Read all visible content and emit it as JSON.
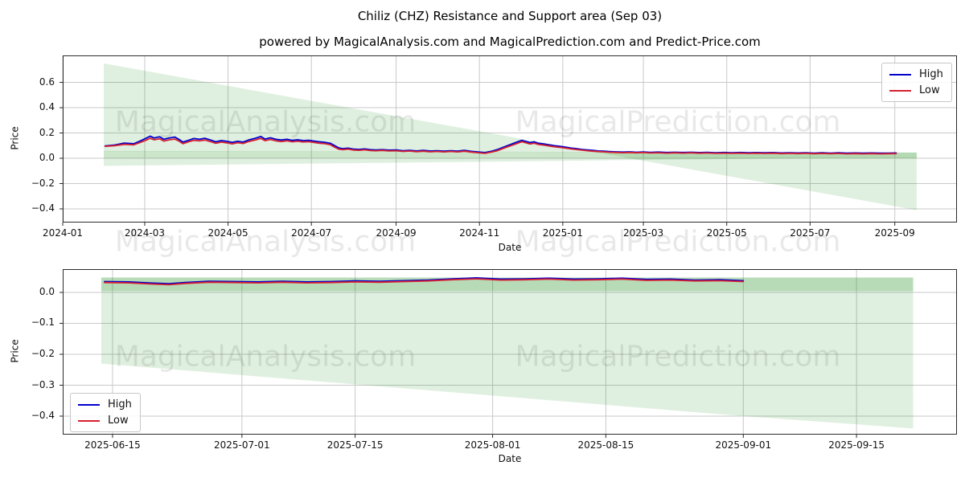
{
  "header": {
    "title": "Chiliz (CHZ) Resistance and Support area (Sep 03)",
    "subtitle": "powered by MagicalAnalysis.com and MagicalPrediction.com and Predict-Price.com"
  },
  "watermarks": {
    "left": "MagicalAnalysis.com",
    "right": "MagicalPrediction.com"
  },
  "legend": {
    "high_label": "High",
    "low_label": "Low"
  },
  "colors": {
    "high": "#0000cc",
    "low": "#d62030",
    "area": "#008000",
    "grid": "#c9c9c9",
    "spine": "#2b2b2b",
    "tick": "#111111"
  },
  "chart_data": [
    {
      "type": "line",
      "name": "full-history-with-projection",
      "xlabel": "Date",
      "ylabel": "Price",
      "x_origin_date": "2024-01-01",
      "xlim": [
        0,
        654.5
      ],
      "ylim": [
        -0.508,
        0.813
      ],
      "grid": true,
      "legend_position": "top-right",
      "xticks": {
        "positions": [
          0,
          60,
          121,
          182,
          244,
          305,
          366,
          425,
          486,
          547,
          609
        ],
        "labels": [
          "2024-01",
          "2024-03",
          "2024-05",
          "2024-07",
          "2024-09",
          "2024-11",
          "2025-01",
          "2025-03",
          "2025-05",
          "2025-07",
          "2025-09"
        ]
      },
      "yticks": {
        "values": [
          0.6,
          0.4,
          0.2,
          0.0,
          -0.2,
          -0.4
        ],
        "labels": [
          "0.6",
          "0.4",
          "0.2",
          "0.0",
          "−0.2",
          "−0.4"
        ]
      },
      "series": [
        {
          "name": "High",
          "color_key": "high",
          "x": [
            31,
            38,
            45,
            52,
            57,
            61,
            64,
            67,
            71,
            74,
            78,
            82,
            85,
            88,
            92,
            96,
            100,
            104,
            108,
            112,
            116,
            120,
            124,
            128,
            132,
            136,
            141,
            145,
            148,
            152,
            156,
            160,
            164,
            168,
            172,
            176,
            180,
            184,
            188,
            192,
            196,
            199,
            202,
            205,
            209,
            213,
            217,
            221,
            225,
            229,
            234,
            239,
            244,
            249,
            254,
            259,
            264,
            269,
            274,
            279,
            284,
            289,
            294,
            299,
            304,
            309,
            314,
            318,
            322,
            326,
            330,
            333,
            336,
            339,
            342,
            345,
            348,
            352,
            356,
            360,
            364,
            368,
            372,
            376,
            380,
            384,
            388,
            392,
            396,
            400,
            405,
            410,
            415,
            420,
            425,
            430,
            436,
            442,
            448,
            454,
            460,
            466,
            472,
            478,
            484,
            490,
            496,
            502,
            508,
            514,
            520,
            526,
            532,
            538,
            544,
            550,
            556,
            562,
            568,
            574,
            580,
            586,
            592,
            598,
            604,
            610
          ],
          "values": [
            0.098,
            0.105,
            0.12,
            0.115,
            0.138,
            0.158,
            0.175,
            0.16,
            0.17,
            0.15,
            0.16,
            0.168,
            0.15,
            0.128,
            0.142,
            0.156,
            0.15,
            0.158,
            0.145,
            0.13,
            0.14,
            0.134,
            0.126,
            0.134,
            0.128,
            0.144,
            0.158,
            0.172,
            0.152,
            0.162,
            0.15,
            0.144,
            0.15,
            0.142,
            0.146,
            0.14,
            0.142,
            0.136,
            0.13,
            0.126,
            0.118,
            0.1,
            0.082,
            0.076,
            0.08,
            0.072,
            0.07,
            0.074,
            0.068,
            0.066,
            0.068,
            0.064,
            0.066,
            0.06,
            0.063,
            0.058,
            0.062,
            0.057,
            0.06,
            0.056,
            0.06,
            0.056,
            0.062,
            0.055,
            0.05,
            0.045,
            0.056,
            0.068,
            0.085,
            0.102,
            0.118,
            0.13,
            0.142,
            0.133,
            0.124,
            0.13,
            0.119,
            0.113,
            0.106,
            0.099,
            0.094,
            0.088,
            0.081,
            0.076,
            0.07,
            0.066,
            0.062,
            0.058,
            0.056,
            0.053,
            0.051,
            0.049,
            0.051,
            0.048,
            0.05,
            0.047,
            0.049,
            0.046,
            0.048,
            0.046,
            0.048,
            0.045,
            0.047,
            0.044,
            0.046,
            0.044,
            0.046,
            0.043,
            0.045,
            0.043,
            0.045,
            0.042,
            0.044,
            0.042,
            0.044,
            0.041,
            0.043,
            0.041,
            0.043,
            0.04,
            0.042,
            0.04,
            0.042,
            0.04,
            0.041,
            0.042
          ]
        },
        {
          "name": "Low",
          "color_key": "low",
          "x": [
            31,
            38,
            45,
            52,
            57,
            61,
            64,
            67,
            71,
            74,
            78,
            82,
            85,
            88,
            92,
            96,
            100,
            104,
            108,
            112,
            116,
            120,
            124,
            128,
            132,
            136,
            141,
            145,
            148,
            152,
            156,
            160,
            164,
            168,
            172,
            176,
            180,
            184,
            188,
            192,
            196,
            199,
            202,
            205,
            209,
            213,
            217,
            221,
            225,
            229,
            234,
            239,
            244,
            249,
            254,
            259,
            264,
            269,
            274,
            279,
            284,
            289,
            294,
            299,
            304,
            309,
            314,
            318,
            322,
            326,
            330,
            333,
            336,
            339,
            342,
            345,
            348,
            352,
            356,
            360,
            364,
            368,
            372,
            376,
            380,
            384,
            388,
            392,
            396,
            400,
            405,
            410,
            415,
            420,
            425,
            430,
            436,
            442,
            448,
            454,
            460,
            466,
            472,
            478,
            484,
            490,
            496,
            502,
            508,
            514,
            520,
            526,
            532,
            538,
            544,
            550,
            556,
            562,
            568,
            574,
            580,
            586,
            592,
            598,
            604,
            610
          ],
          "values": [
            0.094,
            0.1,
            0.11,
            0.106,
            0.126,
            0.143,
            0.158,
            0.146,
            0.154,
            0.136,
            0.146,
            0.152,
            0.136,
            0.115,
            0.13,
            0.142,
            0.137,
            0.144,
            0.132,
            0.118,
            0.128,
            0.122,
            0.114,
            0.123,
            0.117,
            0.132,
            0.145,
            0.157,
            0.139,
            0.149,
            0.138,
            0.132,
            0.138,
            0.13,
            0.134,
            0.129,
            0.131,
            0.125,
            0.119,
            0.115,
            0.106,
            0.088,
            0.072,
            0.068,
            0.072,
            0.065,
            0.063,
            0.067,
            0.061,
            0.06,
            0.062,
            0.058,
            0.06,
            0.054,
            0.057,
            0.052,
            0.056,
            0.051,
            0.054,
            0.05,
            0.054,
            0.05,
            0.056,
            0.049,
            0.044,
            0.039,
            0.049,
            0.06,
            0.076,
            0.092,
            0.107,
            0.119,
            0.131,
            0.122,
            0.113,
            0.119,
            0.109,
            0.104,
            0.097,
            0.091,
            0.086,
            0.08,
            0.074,
            0.069,
            0.064,
            0.06,
            0.056,
            0.053,
            0.051,
            0.048,
            0.046,
            0.044,
            0.046,
            0.043,
            0.045,
            0.042,
            0.044,
            0.041,
            0.043,
            0.041,
            0.043,
            0.04,
            0.042,
            0.039,
            0.041,
            0.039,
            0.041,
            0.038,
            0.04,
            0.038,
            0.04,
            0.037,
            0.039,
            0.037,
            0.039,
            0.036,
            0.038,
            0.036,
            0.038,
            0.035,
            0.037,
            0.035,
            0.037,
            0.035,
            0.036,
            0.037
          ]
        }
      ],
      "areas": [
        {
          "name": "resistance-support-cone",
          "opacity": 0.12,
          "points": [
            [
              30,
              0.75
            ],
            [
              625,
              -0.41
            ],
            [
              625,
              0.045
            ],
            [
              30,
              0.055
            ]
          ]
        },
        {
          "name": "price-band",
          "opacity": 0.2,
          "points": [
            [
              30,
              0.058
            ],
            [
              625,
              0.045
            ],
            [
              625,
              0.0
            ],
            [
              30,
              0.0
            ]
          ]
        },
        {
          "name": "support-wedge",
          "opacity": 0.12,
          "points": [
            [
              30,
              0.0
            ],
            [
              30,
              -0.06
            ],
            [
              540,
              0.0
            ]
          ]
        }
      ]
    },
    {
      "type": "line",
      "name": "recent-zoom-with-forecast-area",
      "xlabel": "Date",
      "ylabel": "Price",
      "x_origin_date": "2025-06-01",
      "xlim": [
        7.84,
        118.42
      ],
      "ylim": [
        -0.4597,
        0.0753
      ],
      "grid": true,
      "legend_position": "bottom-left",
      "xticks": {
        "positions": [
          14,
          30,
          44,
          61,
          75,
          92,
          106
        ],
        "labels": [
          "2025-06-15",
          "2025-07-01",
          "2025-07-15",
          "2025-08-01",
          "2025-08-15",
          "2025-09-01",
          "2025-09-15"
        ]
      },
      "yticks": {
        "values": [
          0.0,
          -0.1,
          -0.2,
          -0.3,
          -0.4
        ],
        "labels": [
          "0.0",
          "−0.1",
          "−0.2",
          "−0.3",
          "−0.4"
        ]
      },
      "series": [
        {
          "name": "High",
          "color_key": "high",
          "x": [
            13,
            16,
            19,
            21,
            23,
            26,
            29,
            32,
            35,
            38,
            41,
            44,
            47,
            50,
            53,
            56,
            59,
            62,
            65,
            68,
            71,
            74,
            77,
            80,
            83,
            86,
            89,
            92
          ],
          "values": [
            0.035,
            0.034,
            0.03,
            0.028,
            0.032,
            0.036,
            0.035,
            0.034,
            0.036,
            0.034,
            0.035,
            0.037,
            0.036,
            0.038,
            0.04,
            0.044,
            0.047,
            0.043,
            0.044,
            0.046,
            0.043,
            0.044,
            0.046,
            0.042,
            0.043,
            0.04,
            0.041,
            0.038
          ]
        },
        {
          "name": "Low",
          "color_key": "low",
          "x": [
            13,
            16,
            19,
            21,
            23,
            26,
            29,
            32,
            35,
            38,
            41,
            44,
            47,
            50,
            53,
            56,
            59,
            62,
            65,
            68,
            71,
            74,
            77,
            80,
            83,
            86,
            89,
            92
          ],
          "values": [
            0.032,
            0.031,
            0.027,
            0.025,
            0.029,
            0.033,
            0.032,
            0.031,
            0.033,
            0.031,
            0.032,
            0.034,
            0.033,
            0.035,
            0.037,
            0.041,
            0.044,
            0.04,
            0.041,
            0.043,
            0.04,
            0.041,
            0.043,
            0.039,
            0.04,
            0.037,
            0.038,
            0.035
          ]
        }
      ],
      "areas": [
        {
          "name": "forecast-area",
          "opacity": 0.12,
          "points": [
            [
              12.6,
              0.048
            ],
            [
              113,
              0.048
            ],
            [
              113,
              -0.44
            ],
            [
              92,
              -0.4
            ],
            [
              12.6,
              -0.23
            ]
          ]
        },
        {
          "name": "price-band",
          "opacity": 0.18,
          "points": [
            [
              12.6,
              0.048
            ],
            [
              113,
              0.048
            ],
            [
              113,
              0.004
            ],
            [
              12.6,
              0.004
            ]
          ]
        }
      ]
    }
  ]
}
